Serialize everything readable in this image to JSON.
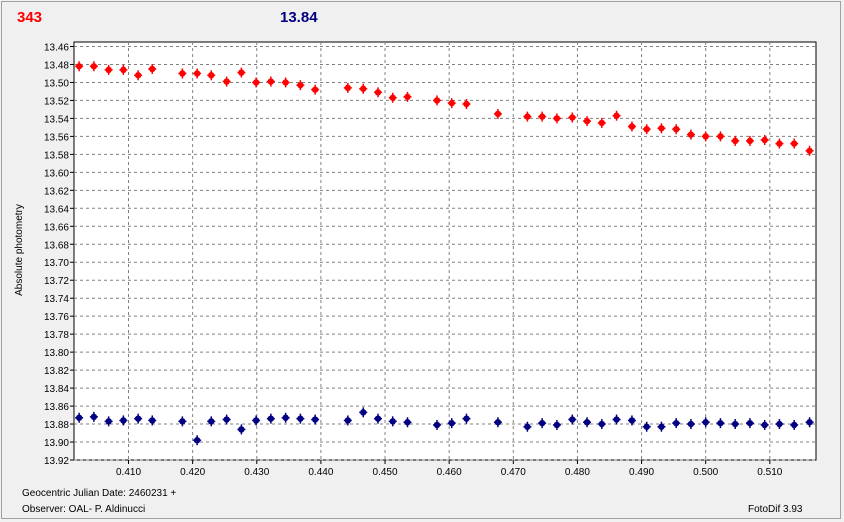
{
  "header": {
    "left_value": "343",
    "right_value": "13.84"
  },
  "footer": {
    "jd_label": "Geocentric Julian Date: 2460231 +",
    "observer": "Observer: OAL- P. Aldinucci",
    "software": "FotoDif 3.93"
  },
  "chart_data": {
    "type": "scatter",
    "ylabel": "Absolute photometry",
    "xlim": [
      0.4015,
      0.5172
    ],
    "ylim": [
      13.92,
      13.455
    ],
    "y_inverted": true,
    "grid": true,
    "x_ticks": [
      "0.410",
      "0.420",
      "0.430",
      "0.440",
      "0.450",
      "0.460",
      "0.470",
      "0.480",
      "0.490",
      "0.500",
      "0.510"
    ],
    "y_ticks": [
      "13.46",
      "13.48",
      "13.50",
      "13.52",
      "13.54",
      "13.56",
      "13.58",
      "13.60",
      "13.62",
      "13.64",
      "13.66",
      "13.68",
      "13.70",
      "13.72",
      "13.74",
      "13.76",
      "13.78",
      "13.80",
      "13.82",
      "13.84",
      "13.86",
      "13.88",
      "13.90",
      "13.92"
    ],
    "series": [
      {
        "color": "#ff0000",
        "points": [
          [
            0.4023,
            13.482
          ],
          [
            0.4046,
            13.482
          ],
          [
            0.4069,
            13.486
          ],
          [
            0.4092,
            13.486
          ],
          [
            0.4115,
            13.492
          ],
          [
            0.4137,
            13.485
          ],
          [
            0.4184,
            13.49
          ],
          [
            0.4207,
            13.49
          ],
          [
            0.4229,
            13.492
          ],
          [
            0.4253,
            13.499
          ],
          [
            0.4276,
            13.489
          ],
          [
            0.4299,
            13.5
          ],
          [
            0.4322,
            13.499
          ],
          [
            0.4345,
            13.5
          ],
          [
            0.4368,
            13.503
          ],
          [
            0.4391,
            13.508
          ],
          [
            0.4442,
            13.506
          ],
          [
            0.4466,
            13.507
          ],
          [
            0.4489,
            13.511
          ],
          [
            0.4512,
            13.517
          ],
          [
            0.4535,
            13.516
          ],
          [
            0.4581,
            13.52
          ],
          [
            0.4604,
            13.523
          ],
          [
            0.4627,
            13.524
          ],
          [
            0.4676,
            13.535
          ],
          [
            0.4722,
            13.538
          ],
          [
            0.4745,
            13.538
          ],
          [
            0.4768,
            13.54
          ],
          [
            0.4792,
            13.539
          ],
          [
            0.4815,
            13.543
          ],
          [
            0.4838,
            13.545
          ],
          [
            0.4861,
            13.537
          ],
          [
            0.4885,
            13.549
          ],
          [
            0.4908,
            13.552
          ],
          [
            0.4931,
            13.551
          ],
          [
            0.4954,
            13.552
          ],
          [
            0.4977,
            13.558
          ],
          [
            0.5,
            13.56
          ],
          [
            0.5023,
            13.56
          ],
          [
            0.5046,
            13.565
          ],
          [
            0.5069,
            13.565
          ],
          [
            0.5092,
            13.564
          ],
          [
            0.5115,
            13.568
          ],
          [
            0.5138,
            13.568
          ],
          [
            0.5162,
            13.576
          ]
        ]
      },
      {
        "color": "#000080",
        "points": [
          [
            0.4023,
            13.873
          ],
          [
            0.4046,
            13.872
          ],
          [
            0.4069,
            13.877
          ],
          [
            0.4092,
            13.876
          ],
          [
            0.4115,
            13.874
          ],
          [
            0.4137,
            13.876
          ],
          [
            0.4184,
            13.877
          ],
          [
            0.4207,
            13.898
          ],
          [
            0.4229,
            13.877
          ],
          [
            0.4253,
            13.875
          ],
          [
            0.4276,
            13.886
          ],
          [
            0.4299,
            13.876
          ],
          [
            0.4322,
            13.874
          ],
          [
            0.4345,
            13.873
          ],
          [
            0.4368,
            13.874
          ],
          [
            0.4391,
            13.875
          ],
          [
            0.4442,
            13.876
          ],
          [
            0.4466,
            13.867
          ],
          [
            0.4489,
            13.874
          ],
          [
            0.4512,
            13.877
          ],
          [
            0.4535,
            13.878
          ],
          [
            0.4581,
            13.881
          ],
          [
            0.4604,
            13.879
          ],
          [
            0.4627,
            13.874
          ],
          [
            0.4676,
            13.878
          ],
          [
            0.4722,
            13.883
          ],
          [
            0.4745,
            13.879
          ],
          [
            0.4768,
            13.881
          ],
          [
            0.4792,
            13.875
          ],
          [
            0.4815,
            13.878
          ],
          [
            0.4838,
            13.88
          ],
          [
            0.4861,
            13.875
          ],
          [
            0.4885,
            13.876
          ],
          [
            0.4908,
            13.883
          ],
          [
            0.4931,
            13.883
          ],
          [
            0.4954,
            13.879
          ],
          [
            0.4977,
            13.88
          ],
          [
            0.5,
            13.878
          ],
          [
            0.5023,
            13.879
          ],
          [
            0.5046,
            13.88
          ],
          [
            0.5069,
            13.879
          ],
          [
            0.5092,
            13.881
          ],
          [
            0.5115,
            13.88
          ],
          [
            0.5138,
            13.881
          ],
          [
            0.5162,
            13.878
          ]
        ]
      }
    ]
  }
}
